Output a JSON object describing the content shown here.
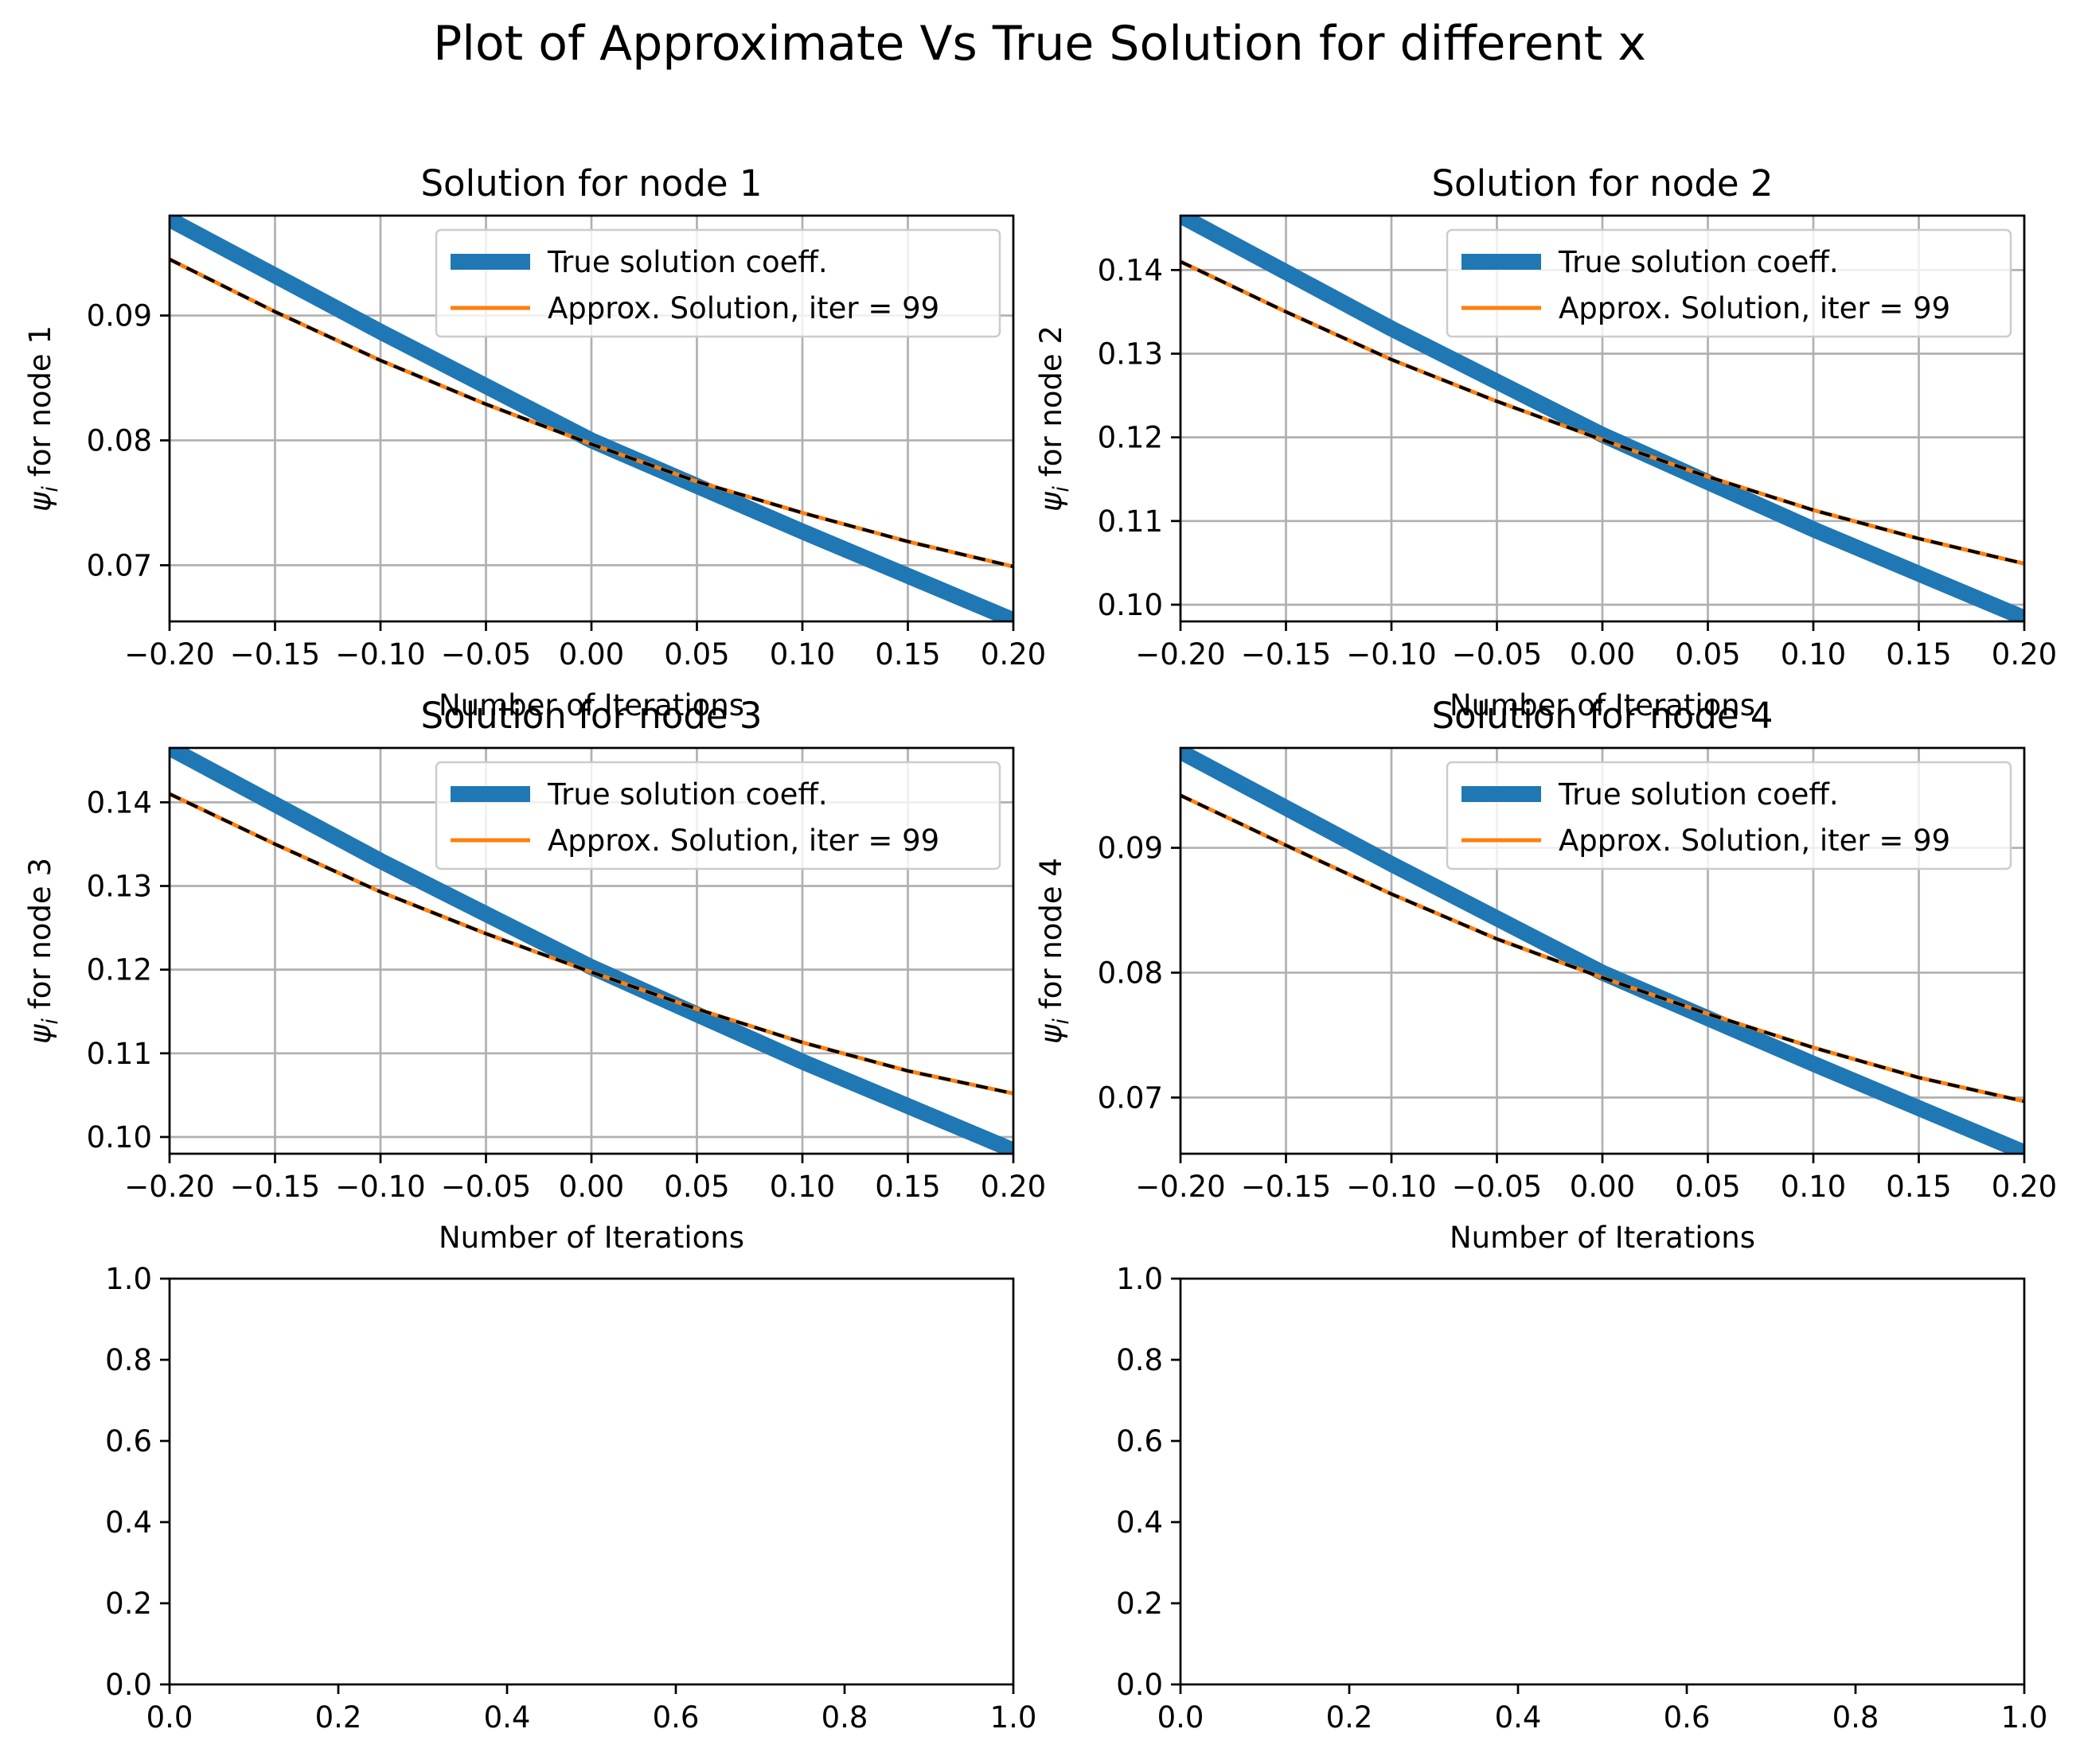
{
  "figure": {
    "title": "Plot of Approximate Vs True Solution for different x",
    "colors": {
      "true": "#1f77b4",
      "approx": "#ff7f0e",
      "reference": "#000000",
      "grid": "#b0b0b0"
    }
  },
  "chart_data": [
    {
      "type": "line",
      "title": "Solution for node 1",
      "xlabel": "Number of Iterations",
      "ylabel_symbol": "ψ",
      "ylabel_sub": "i",
      "ylabel_rest": " for node 1",
      "xlim": [
        -0.2,
        0.2
      ],
      "ylim": [
        0.0655,
        0.098
      ],
      "xticks": [
        -0.2,
        -0.15,
        -0.1,
        -0.05,
        0.0,
        0.05,
        0.1,
        0.15,
        0.2
      ],
      "xtick_labels": [
        "−0.20",
        "−0.15",
        "−0.10",
        "−0.05",
        "0.00",
        "0.05",
        "0.10",
        "0.15",
        "0.20"
      ],
      "yticks": [
        0.07,
        0.08,
        0.09
      ],
      "ytick_labels": [
        "0.07",
        "0.08",
        "0.09"
      ],
      "grid": true,
      "legend": "upper right",
      "series": [
        {
          "name": "True solution coeff.",
          "x": [
            -0.2,
            -0.1,
            0.0,
            0.1,
            0.2
          ],
          "y": [
            0.0977,
            0.0887,
            0.08,
            0.0727,
            0.0656
          ]
        },
        {
          "name": "Approx. Solution, iter = 99",
          "x": [
            -0.2,
            -0.15,
            -0.1,
            -0.05,
            0.0,
            0.05,
            0.1,
            0.15,
            0.2
          ],
          "y": [
            0.0945,
            0.0903,
            0.0864,
            0.0829,
            0.0797,
            0.0767,
            0.0742,
            0.0719,
            0.0699
          ]
        }
      ]
    },
    {
      "type": "line",
      "title": "Solution for node 2",
      "xlabel": "Number of Iterations",
      "ylabel_symbol": "ψ",
      "ylabel_sub": "i",
      "ylabel_rest": " for node 2",
      "xlim": [
        -0.2,
        0.2
      ],
      "ylim": [
        0.098,
        0.1465
      ],
      "xticks": [
        -0.2,
        -0.15,
        -0.1,
        -0.05,
        0.0,
        0.05,
        0.1,
        0.15,
        0.2
      ],
      "xtick_labels": [
        "−0.20",
        "−0.15",
        "−0.10",
        "−0.05",
        "0.00",
        "0.05",
        "0.10",
        "0.15",
        "0.20"
      ],
      "yticks": [
        0.1,
        0.11,
        0.12,
        0.13,
        0.14
      ],
      "ytick_labels": [
        "0.10",
        "0.11",
        "0.12",
        "0.13",
        "0.14"
      ],
      "grid": true,
      "legend": "upper right",
      "series": [
        {
          "name": "True solution coeff.",
          "x": [
            -0.2,
            -0.1,
            0.0,
            0.1,
            0.2
          ],
          "y": [
            0.1465,
            0.133,
            0.1203,
            0.109,
            0.0984
          ]
        },
        {
          "name": "Approx. Solution, iter = 99",
          "x": [
            -0.2,
            -0.15,
            -0.1,
            -0.05,
            0.0,
            0.05,
            0.1,
            0.15,
            0.2
          ],
          "y": [
            0.141,
            0.135,
            0.1293,
            0.1243,
            0.1197,
            0.1153,
            0.1113,
            0.1079,
            0.1049
          ]
        }
      ]
    },
    {
      "type": "line",
      "title": "Solution for node 3",
      "xlabel": "Number of Iterations",
      "ylabel_symbol": "ψ",
      "ylabel_sub": "i",
      "ylabel_rest": " for node 3",
      "xlim": [
        -0.2,
        0.2
      ],
      "ylim": [
        0.098,
        0.1465
      ],
      "xticks": [
        -0.2,
        -0.15,
        -0.1,
        -0.05,
        0.0,
        0.05,
        0.1,
        0.15,
        0.2
      ],
      "xtick_labels": [
        "−0.20",
        "−0.15",
        "−0.10",
        "−0.05",
        "0.00",
        "0.05",
        "0.10",
        "0.15",
        "0.20"
      ],
      "yticks": [
        0.1,
        0.11,
        0.12,
        0.13,
        0.14
      ],
      "ytick_labels": [
        "0.10",
        "0.11",
        "0.12",
        "0.13",
        "0.14"
      ],
      "grid": true,
      "legend": "upper right",
      "series": [
        {
          "name": "True solution coeff.",
          "x": [
            -0.2,
            -0.1,
            0.0,
            0.1,
            0.2
          ],
          "y": [
            0.1465,
            0.133,
            0.1203,
            0.109,
            0.0984
          ]
        },
        {
          "name": "Approx. Solution, iter = 99",
          "x": [
            -0.2,
            -0.15,
            -0.1,
            -0.05,
            0.0,
            0.05,
            0.1,
            0.15,
            0.2
          ],
          "y": [
            0.141,
            0.135,
            0.1293,
            0.1243,
            0.1197,
            0.1153,
            0.1113,
            0.1079,
            0.1052
          ]
        }
      ]
    },
    {
      "type": "line",
      "title": "Solution for node 4",
      "xlabel": "Number of Iterations",
      "ylabel_symbol": "ψ",
      "ylabel_sub": "i",
      "ylabel_rest": " for node 4",
      "xlim": [
        -0.2,
        0.2
      ],
      "ylim": [
        0.0655,
        0.098
      ],
      "xticks": [
        -0.2,
        -0.15,
        -0.1,
        -0.05,
        0.0,
        0.05,
        0.1,
        0.15,
        0.2
      ],
      "xtick_labels": [
        "−0.20",
        "−0.15",
        "−0.10",
        "−0.05",
        "0.00",
        "0.05",
        "0.10",
        "0.15",
        "0.20"
      ],
      "yticks": [
        0.07,
        0.08,
        0.09
      ],
      "ytick_labels": [
        "0.07",
        "0.08",
        "0.09"
      ],
      "grid": true,
      "legend": "upper right",
      "series": [
        {
          "name": "True solution coeff.",
          "x": [
            -0.2,
            -0.1,
            0.0,
            0.1,
            0.2
          ],
          "y": [
            0.0977,
            0.0887,
            0.08,
            0.0727,
            0.0656
          ]
        },
        {
          "name": "Approx. Solution, iter = 99",
          "x": [
            -0.2,
            -0.15,
            -0.1,
            -0.05,
            0.0,
            0.05,
            0.1,
            0.15,
            0.2
          ],
          "y": [
            0.0942,
            0.0902,
            0.0863,
            0.0827,
            0.0796,
            0.0767,
            0.074,
            0.0716,
            0.0697
          ]
        }
      ]
    },
    {
      "type": "line",
      "title": "",
      "xlabel": "",
      "ylabel": "",
      "xlim": [
        0,
        1
      ],
      "ylim": [
        0,
        1
      ],
      "xticks": [
        0,
        0.2,
        0.4,
        0.6,
        0.8,
        1.0
      ],
      "xtick_labels": [
        "0.0",
        "0.2",
        "0.4",
        "0.6",
        "0.8",
        "1.0"
      ],
      "yticks": [
        0,
        0.2,
        0.4,
        0.6,
        0.8,
        1.0
      ],
      "ytick_labels": [
        "0.0",
        "0.2",
        "0.4",
        "0.6",
        "0.8",
        "1.0"
      ],
      "grid": false,
      "series": []
    },
    {
      "type": "line",
      "title": "",
      "xlabel": "",
      "ylabel": "",
      "xlim": [
        0,
        1
      ],
      "ylim": [
        0,
        1
      ],
      "xticks": [
        0,
        0.2,
        0.4,
        0.6,
        0.8,
        1.0
      ],
      "xtick_labels": [
        "0.0",
        "0.2",
        "0.4",
        "0.6",
        "0.8",
        "1.0"
      ],
      "yticks": [
        0,
        0.2,
        0.4,
        0.6,
        0.8,
        1.0
      ],
      "ytick_labels": [
        "0.0",
        "0.2",
        "0.4",
        "0.6",
        "0.8",
        "1.0"
      ],
      "grid": false,
      "series": []
    }
  ]
}
